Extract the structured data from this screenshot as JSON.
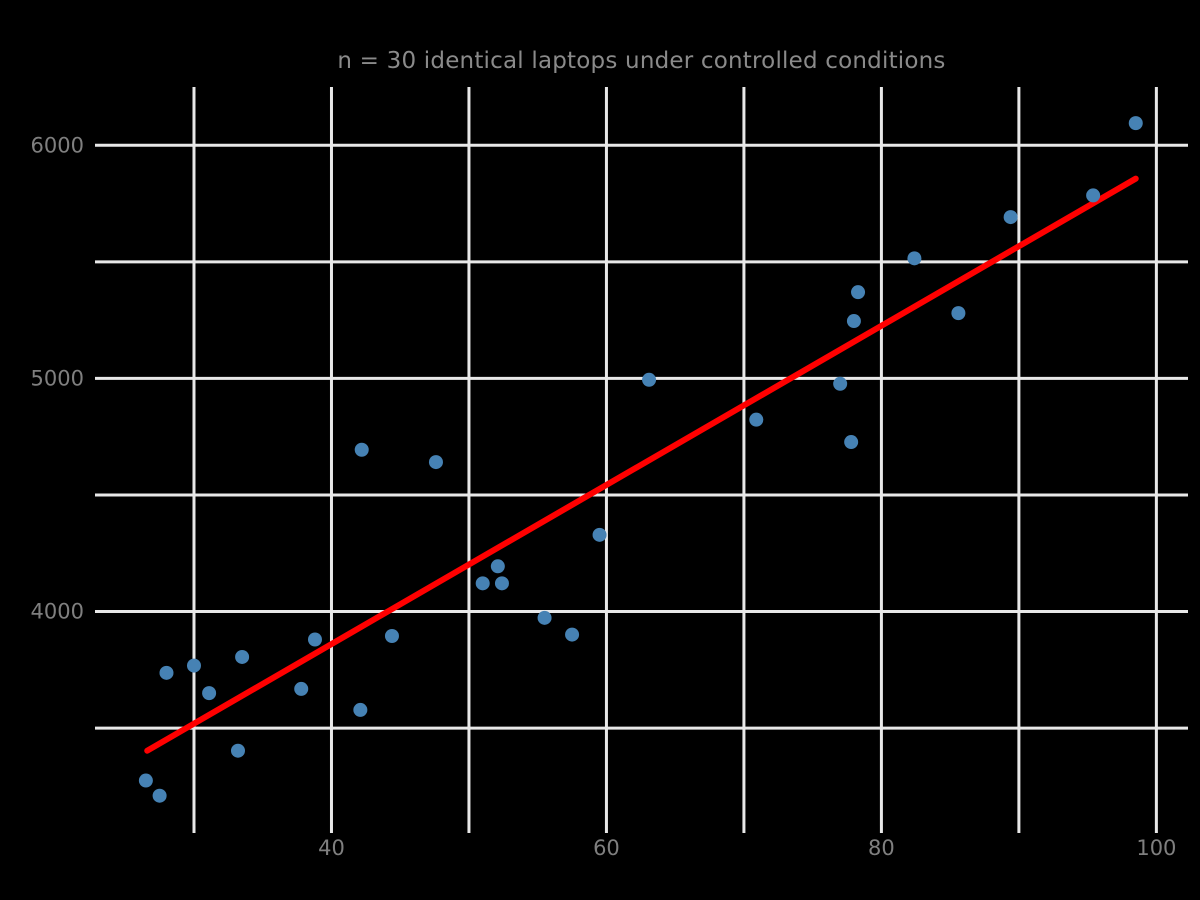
{
  "figure": {
    "background_color": "#000000"
  },
  "chart_data": {
    "type": "scatter",
    "title": "n = 30 identical laptops under controlled conditions",
    "xlabel": "",
    "ylabel": "",
    "xlim": [
      22.8,
      102.3
    ],
    "ylim": [
      3080,
      6250
    ],
    "grid": true,
    "legend": "none",
    "x_gridlines": [
      30,
      40,
      50,
      60,
      70,
      80,
      90,
      100
    ],
    "x_tick_labels": [
      {
        "value": 40,
        "label": "40"
      },
      {
        "value": 60,
        "label": "60"
      },
      {
        "value": 80,
        "label": "80"
      },
      {
        "value": 100,
        "label": "100"
      }
    ],
    "y_gridlines": [
      3500,
      4000,
      4500,
      5000,
      5500,
      6000
    ],
    "y_tick_labels": [
      {
        "value": 4000,
        "label": "4000"
      },
      {
        "value": 5000,
        "label": "5000"
      },
      {
        "value": 6000,
        "label": "6000"
      }
    ],
    "points": [
      [
        26.5,
        3275
      ],
      [
        27.5,
        3210
      ],
      [
        28.0,
        3737
      ],
      [
        30.0,
        3768
      ],
      [
        31.1,
        3650
      ],
      [
        33.2,
        3403
      ],
      [
        33.5,
        3805
      ],
      [
        37.8,
        3668
      ],
      [
        38.8,
        3880
      ],
      [
        42.1,
        3578
      ],
      [
        44.4,
        3895
      ],
      [
        42.2,
        4694
      ],
      [
        47.6,
        4641
      ],
      [
        51.0,
        4121
      ],
      [
        52.1,
        4194
      ],
      [
        52.4,
        4121
      ],
      [
        55.5,
        3973
      ],
      [
        57.5,
        3901
      ],
      [
        59.5,
        4329
      ],
      [
        63.1,
        4994
      ],
      [
        70.9,
        4823
      ],
      [
        77.0,
        4977
      ],
      [
        77.8,
        4727
      ],
      [
        78.0,
        5246
      ],
      [
        78.3,
        5370
      ],
      [
        82.4,
        5515
      ],
      [
        85.6,
        5280
      ],
      [
        89.4,
        5692
      ],
      [
        95.4,
        5785
      ],
      [
        98.5,
        6095
      ]
    ],
    "trend_line": {
      "x1": 26.6,
      "y1": 3403,
      "x2": 98.5,
      "y2": 5857
    },
    "colors": {
      "point": "#4682b4",
      "trend": "#ff0000",
      "grid": "#e8e8e8",
      "text_title": "#8a8a8a",
      "text_ticks": "#7f7f7f",
      "background": "#000000"
    }
  }
}
